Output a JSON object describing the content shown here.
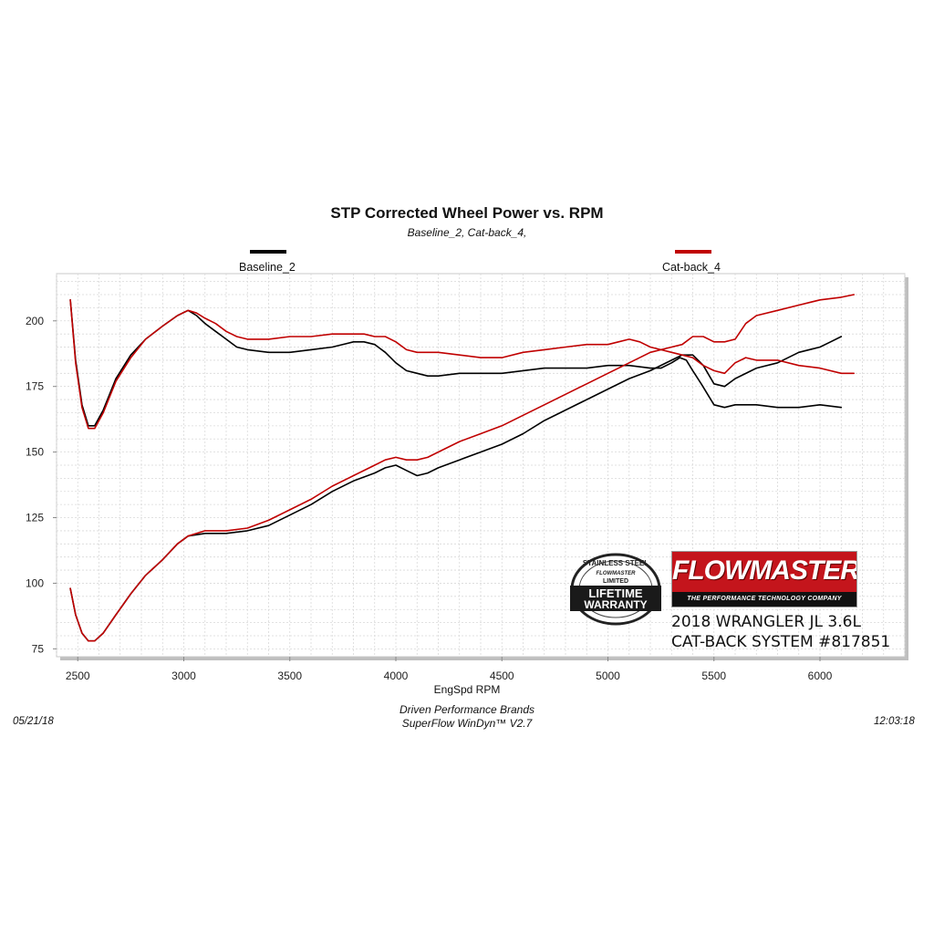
{
  "chart_data": {
    "type": "line",
    "title": "STP Corrected Wheel Power vs. RPM",
    "subtitle": "Baseline_2, Cat-back_4,",
    "xlabel": "EngSpd  RPM",
    "ylabel": "",
    "xlim": [
      2400,
      6400
    ],
    "ylim": [
      72,
      218
    ],
    "x_ticks": [
      "2500",
      "3000",
      "3500",
      "4000",
      "4500",
      "5000",
      "5500",
      "6000"
    ],
    "y_ticks": [
      "75",
      "100",
      "125",
      "150",
      "175",
      "200"
    ],
    "grid": true,
    "legend_placement": "top",
    "series": [
      {
        "name": "Baseline_2",
        "color": "#000000",
        "curves": [
          [
            [
              2465,
              208
            ],
            [
              2490,
              185
            ],
            [
              2520,
              168
            ],
            [
              2550,
              160
            ],
            [
              2580,
              160
            ],
            [
              2620,
              166
            ],
            [
              2680,
              178
            ],
            [
              2750,
              187
            ],
            [
              2820,
              193
            ],
            [
              2900,
              198
            ],
            [
              2970,
              202
            ],
            [
              3020,
              204
            ],
            [
              3060,
              202
            ],
            [
              3100,
              199
            ],
            [
              3150,
              196
            ],
            [
              3200,
              193
            ],
            [
              3250,
              190
            ],
            [
              3300,
              189
            ],
            [
              3400,
              188
            ],
            [
              3500,
              188
            ],
            [
              3600,
              189
            ],
            [
              3700,
              190
            ],
            [
              3800,
              192
            ],
            [
              3850,
              192
            ],
            [
              3900,
              191
            ],
            [
              3950,
              188
            ],
            [
              4000,
              184
            ],
            [
              4050,
              181
            ],
            [
              4100,
              180
            ],
            [
              4150,
              179
            ],
            [
              4200,
              179
            ],
            [
              4300,
              180
            ],
            [
              4400,
              180
            ],
            [
              4500,
              180
            ],
            [
              4600,
              181
            ],
            [
              4700,
              182
            ],
            [
              4800,
              182
            ],
            [
              4900,
              182
            ],
            [
              5000,
              183
            ],
            [
              5100,
              183
            ],
            [
              5200,
              182
            ],
            [
              5250,
              182
            ],
            [
              5300,
              184
            ],
            [
              5340,
              186
            ],
            [
              5370,
              185
            ],
            [
              5400,
              181
            ],
            [
              5440,
              176
            ],
            [
              5470,
              172
            ],
            [
              5500,
              168
            ],
            [
              5550,
              167
            ],
            [
              5600,
              168
            ],
            [
              5700,
              168
            ],
            [
              5800,
              167
            ],
            [
              5900,
              167
            ],
            [
              6000,
              168
            ],
            [
              6100,
              167
            ]
          ],
          [
            [
              2465,
              98
            ],
            [
              2490,
              88
            ],
            [
              2520,
              81
            ],
            [
              2550,
              78
            ],
            [
              2580,
              78
            ],
            [
              2620,
              81
            ],
            [
              2680,
              88
            ],
            [
              2750,
              96
            ],
            [
              2820,
              103
            ],
            [
              2900,
              109
            ],
            [
              2970,
              115
            ],
            [
              3020,
              118
            ],
            [
              3100,
              119
            ],
            [
              3200,
              119
            ],
            [
              3300,
              120
            ],
            [
              3400,
              122
            ],
            [
              3500,
              126
            ],
            [
              3600,
              130
            ],
            [
              3700,
              135
            ],
            [
              3800,
              139
            ],
            [
              3900,
              142
            ],
            [
              3950,
              144
            ],
            [
              4000,
              145
            ],
            [
              4050,
              143
            ],
            [
              4100,
              141
            ],
            [
              4150,
              142
            ],
            [
              4200,
              144
            ],
            [
              4300,
              147
            ],
            [
              4400,
              150
            ],
            [
              4500,
              153
            ],
            [
              4600,
              157
            ],
            [
              4700,
              162
            ],
            [
              4800,
              166
            ],
            [
              4900,
              170
            ],
            [
              5000,
              174
            ],
            [
              5100,
              178
            ],
            [
              5200,
              181
            ],
            [
              5300,
              185
            ],
            [
              5350,
              187
            ],
            [
              5400,
              187
            ],
            [
              5450,
              183
            ],
            [
              5500,
              176
            ],
            [
              5550,
              175
            ],
            [
              5600,
              178
            ],
            [
              5700,
              182
            ],
            [
              5800,
              184
            ],
            [
              5900,
              188
            ],
            [
              6000,
              190
            ],
            [
              6050,
              192
            ],
            [
              6100,
              194
            ]
          ]
        ]
      },
      {
        "name": "Cat-back_4",
        "color": "#c00000",
        "curves": [
          [
            [
              2465,
              208
            ],
            [
              2490,
              184
            ],
            [
              2520,
              167
            ],
            [
              2550,
              159
            ],
            [
              2580,
              159
            ],
            [
              2620,
              165
            ],
            [
              2680,
              177
            ],
            [
              2750,
              186
            ],
            [
              2820,
              193
            ],
            [
              2900,
              198
            ],
            [
              2970,
              202
            ],
            [
              3020,
              204
            ],
            [
              3060,
              203
            ],
            [
              3100,
              201
            ],
            [
              3150,
              199
            ],
            [
              3200,
              196
            ],
            [
              3250,
              194
            ],
            [
              3300,
              193
            ],
            [
              3400,
              193
            ],
            [
              3500,
              194
            ],
            [
              3600,
              194
            ],
            [
              3700,
              195
            ],
            [
              3800,
              195
            ],
            [
              3850,
              195
            ],
            [
              3900,
              194
            ],
            [
              3950,
              194
            ],
            [
              4000,
              192
            ],
            [
              4050,
              189
            ],
            [
              4100,
              188
            ],
            [
              4200,
              188
            ],
            [
              4300,
              187
            ],
            [
              4400,
              186
            ],
            [
              4500,
              186
            ],
            [
              4600,
              188
            ],
            [
              4700,
              189
            ],
            [
              4800,
              190
            ],
            [
              4900,
              191
            ],
            [
              5000,
              191
            ],
            [
              5050,
              192
            ],
            [
              5100,
              193
            ],
            [
              5150,
              192
            ],
            [
              5200,
              190
            ],
            [
              5250,
              189
            ],
            [
              5300,
              188
            ],
            [
              5350,
              187
            ],
            [
              5400,
              186
            ],
            [
              5450,
              183
            ],
            [
              5500,
              181
            ],
            [
              5550,
              180
            ],
            [
              5600,
              184
            ],
            [
              5650,
              186
            ],
            [
              5700,
              185
            ],
            [
              5800,
              185
            ],
            [
              5900,
              183
            ],
            [
              6000,
              182
            ],
            [
              6100,
              180
            ],
            [
              6160,
              180
            ]
          ],
          [
            [
              2465,
              98
            ],
            [
              2490,
              88
            ],
            [
              2520,
              81
            ],
            [
              2550,
              78
            ],
            [
              2580,
              78
            ],
            [
              2620,
              81
            ],
            [
              2680,
              88
            ],
            [
              2750,
              96
            ],
            [
              2820,
              103
            ],
            [
              2900,
              109
            ],
            [
              2970,
              115
            ],
            [
              3020,
              118
            ],
            [
              3100,
              120
            ],
            [
              3200,
              120
            ],
            [
              3300,
              121
            ],
            [
              3400,
              124
            ],
            [
              3500,
              128
            ],
            [
              3600,
              132
            ],
            [
              3700,
              137
            ],
            [
              3800,
              141
            ],
            [
              3900,
              145
            ],
            [
              3950,
              147
            ],
            [
              4000,
              148
            ],
            [
              4050,
              147
            ],
            [
              4100,
              147
            ],
            [
              4150,
              148
            ],
            [
              4200,
              150
            ],
            [
              4300,
              154
            ],
            [
              4400,
              157
            ],
            [
              4500,
              160
            ],
            [
              4600,
              164
            ],
            [
              4700,
              168
            ],
            [
              4800,
              172
            ],
            [
              4900,
              176
            ],
            [
              5000,
              180
            ],
            [
              5100,
              184
            ],
            [
              5200,
              188
            ],
            [
              5300,
              190
            ],
            [
              5350,
              191
            ],
            [
              5400,
              194
            ],
            [
              5450,
              194
            ],
            [
              5500,
              192
            ],
            [
              5550,
              192
            ],
            [
              5600,
              193
            ],
            [
              5650,
              199
            ],
            [
              5700,
              202
            ],
            [
              5800,
              204
            ],
            [
              5900,
              206
            ],
            [
              6000,
              208
            ],
            [
              6100,
              209
            ],
            [
              6160,
              210
            ]
          ]
        ]
      }
    ]
  },
  "annotations": {
    "line1": "2018 WRANGLER JL 3.6L",
    "line2": "CAT-BACK SYSTEM #817851"
  },
  "logos": {
    "flowmaster": "FLOWMASTER",
    "flowmaster_tagline": "THE PERFORMANCE TECHNOLOGY COMPANY",
    "badge_top": "STAINLESS STEEL",
    "badge_brand": "FLOWMASTER",
    "badge_limited": "LIMITED",
    "badge_lifetime": "LIFETIME",
    "badge_warranty": "WARRANTY"
  },
  "footer": {
    "date": "05/21/18",
    "company": "Driven Performance Brands",
    "software": "SuperFlow WinDyn™  V2.7",
    "time": "12:03:18"
  }
}
